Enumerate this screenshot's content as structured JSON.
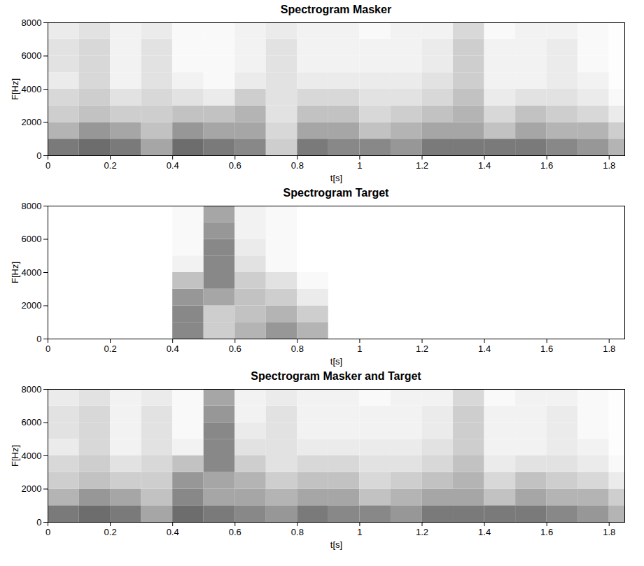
{
  "chart_data": [
    {
      "type": "heatmap",
      "title": "Spectrogram Masker",
      "x_label": "t[s]",
      "y_label": "F[Hz]",
      "xlim": [
        0,
        1.85
      ],
      "ylim": [
        0,
        8000
      ],
      "xticks": [
        0,
        0.2,
        0.4,
        0.6,
        0.8,
        1,
        1.2,
        1.4,
        1.6,
        1.8
      ],
      "yticks": [
        0,
        2000,
        4000,
        6000,
        8000
      ],
      "time_edges": [
        0,
        0.1,
        0.2,
        0.3,
        0.4,
        0.5,
        0.6,
        0.7,
        0.8,
        0.9,
        1,
        1.1,
        1.2,
        1.3,
        1.4,
        1.5,
        1.6,
        1.7,
        1.8,
        1.85
      ],
      "freq_edges": [
        0,
        1000,
        2000,
        3000,
        4000,
        5000,
        6000,
        7000,
        8000
      ],
      "cells": [
        [
          0.6,
          0.65,
          0.6,
          0.45,
          0.65,
          0.6,
          0.55,
          0.3,
          0.6,
          0.55,
          0.55,
          0.5,
          0.6,
          0.6,
          0.6,
          0.6,
          0.55,
          0.5,
          0.4
        ],
        [
          0.4,
          0.5,
          0.45,
          0.35,
          0.5,
          0.45,
          0.45,
          0.25,
          0.45,
          0.45,
          0.35,
          0.4,
          0.45,
          0.45,
          0.35,
          0.45,
          0.4,
          0.4,
          0.3
        ],
        [
          0.3,
          0.35,
          0.3,
          0.3,
          0.35,
          0.35,
          0.4,
          0.2,
          0.35,
          0.35,
          0.25,
          0.3,
          0.35,
          0.4,
          0.25,
          0.35,
          0.3,
          0.25,
          0.15
        ],
        [
          0.25,
          0.3,
          0.2,
          0.25,
          0.2,
          0.15,
          0.3,
          0.2,
          0.25,
          0.25,
          0.2,
          0.2,
          0.25,
          0.35,
          0.15,
          0.2,
          0.2,
          0.15,
          0.05
        ],
        [
          0.15,
          0.25,
          0.1,
          0.2,
          0.1,
          0.05,
          0.15,
          0.2,
          0.15,
          0.15,
          0.15,
          0.15,
          0.2,
          0.3,
          0.1,
          0.1,
          0.15,
          0.1,
          0.02
        ],
        [
          0.2,
          0.25,
          0.1,
          0.2,
          0.05,
          0.05,
          0.1,
          0.2,
          0.1,
          0.1,
          0.1,
          0.1,
          0.15,
          0.3,
          0.1,
          0.1,
          0.15,
          0.05,
          0.02
        ],
        [
          0.2,
          0.25,
          0.1,
          0.2,
          0.05,
          0.05,
          0.1,
          0.2,
          0.1,
          0.1,
          0.1,
          0.1,
          0.15,
          0.3,
          0.1,
          0.1,
          0.15,
          0.05,
          0.02
        ],
        [
          0.15,
          0.2,
          0.1,
          0.15,
          0.05,
          0.05,
          0.1,
          0.15,
          0.1,
          0.1,
          0.05,
          0.1,
          0.1,
          0.25,
          0.05,
          0.1,
          0.1,
          0.05,
          0.02
        ]
      ]
    },
    {
      "type": "heatmap",
      "title": "Spectrogram Target",
      "x_label": "t[s]",
      "y_label": "F[Hz]",
      "xlim": [
        0,
        1.85
      ],
      "ylim": [
        0,
        8000
      ],
      "xticks": [
        0,
        0.2,
        0.4,
        0.6,
        0.8,
        1,
        1.2,
        1.4,
        1.6,
        1.8
      ],
      "yticks": [
        0,
        2000,
        4000,
        6000,
        8000
      ],
      "time_edges": [
        0,
        0.1,
        0.2,
        0.3,
        0.4,
        0.5,
        0.6,
        0.7,
        0.8,
        0.9,
        1,
        1.1,
        1.2,
        1.3,
        1.4,
        1.5,
        1.6,
        1.7,
        1.8,
        1.85
      ],
      "freq_edges": [
        0,
        1000,
        2000,
        3000,
        4000,
        5000,
        6000,
        7000,
        8000
      ],
      "cells": [
        [
          0,
          0,
          0,
          0,
          0.55,
          0.3,
          0.4,
          0.5,
          0.4,
          0,
          0,
          0,
          0,
          0,
          0,
          0,
          0,
          0,
          0
        ],
        [
          0,
          0,
          0,
          0,
          0.55,
          0.3,
          0.35,
          0.4,
          0.3,
          0,
          0,
          0,
          0,
          0,
          0,
          0,
          0,
          0,
          0
        ],
        [
          0,
          0,
          0,
          0,
          0.5,
          0.45,
          0.35,
          0.3,
          0.15,
          0,
          0,
          0,
          0,
          0,
          0,
          0,
          0,
          0,
          0
        ],
        [
          0,
          0,
          0,
          0,
          0.35,
          0.55,
          0.3,
          0.2,
          0.05,
          0,
          0,
          0,
          0,
          0,
          0,
          0,
          0,
          0,
          0
        ],
        [
          0,
          0,
          0,
          0,
          0.1,
          0.55,
          0.2,
          0.05,
          0,
          0,
          0,
          0,
          0,
          0,
          0,
          0,
          0,
          0,
          0
        ],
        [
          0,
          0,
          0,
          0,
          0.05,
          0.55,
          0.15,
          0.05,
          0,
          0,
          0,
          0,
          0,
          0,
          0,
          0,
          0,
          0,
          0
        ],
        [
          0,
          0,
          0,
          0,
          0.05,
          0.5,
          0.1,
          0.05,
          0,
          0,
          0,
          0,
          0,
          0,
          0,
          0,
          0,
          0,
          0
        ],
        [
          0,
          0,
          0,
          0,
          0.05,
          0.45,
          0.1,
          0.05,
          0,
          0,
          0,
          0,
          0,
          0,
          0,
          0,
          0,
          0,
          0
        ]
      ]
    },
    {
      "type": "heatmap",
      "title": "Spectrogram Masker and Target",
      "x_label": "t[s]",
      "y_label": "F[Hz]",
      "xlim": [
        0,
        1.85
      ],
      "ylim": [
        0,
        8000
      ],
      "xticks": [
        0,
        0.2,
        0.4,
        0.6,
        0.8,
        1,
        1.2,
        1.4,
        1.6,
        1.8
      ],
      "yticks": [
        0,
        2000,
        4000,
        6000,
        8000
      ],
      "time_edges": [
        0,
        0.1,
        0.2,
        0.3,
        0.4,
        0.5,
        0.6,
        0.7,
        0.8,
        0.9,
        1,
        1.1,
        1.2,
        1.3,
        1.4,
        1.5,
        1.6,
        1.7,
        1.8,
        1.85
      ],
      "freq_edges": [
        0,
        1000,
        2000,
        3000,
        4000,
        5000,
        6000,
        7000,
        8000
      ],
      "cells": [
        [
          0.6,
          0.65,
          0.6,
          0.45,
          0.65,
          0.6,
          0.55,
          0.5,
          0.6,
          0.55,
          0.55,
          0.5,
          0.6,
          0.6,
          0.6,
          0.6,
          0.55,
          0.5,
          0.4
        ],
        [
          0.4,
          0.5,
          0.45,
          0.35,
          0.55,
          0.45,
          0.45,
          0.4,
          0.45,
          0.45,
          0.35,
          0.4,
          0.45,
          0.45,
          0.35,
          0.45,
          0.4,
          0.4,
          0.3
        ],
        [
          0.3,
          0.35,
          0.3,
          0.3,
          0.5,
          0.45,
          0.4,
          0.3,
          0.35,
          0.35,
          0.25,
          0.3,
          0.35,
          0.4,
          0.25,
          0.35,
          0.3,
          0.25,
          0.15
        ],
        [
          0.25,
          0.3,
          0.2,
          0.25,
          0.35,
          0.55,
          0.3,
          0.2,
          0.25,
          0.25,
          0.2,
          0.2,
          0.25,
          0.35,
          0.15,
          0.2,
          0.2,
          0.15,
          0.05
        ],
        [
          0.15,
          0.25,
          0.1,
          0.2,
          0.1,
          0.55,
          0.2,
          0.2,
          0.15,
          0.15,
          0.15,
          0.15,
          0.2,
          0.3,
          0.1,
          0.1,
          0.15,
          0.1,
          0.02
        ],
        [
          0.2,
          0.25,
          0.1,
          0.2,
          0.05,
          0.55,
          0.15,
          0.2,
          0.1,
          0.1,
          0.1,
          0.1,
          0.15,
          0.3,
          0.1,
          0.1,
          0.15,
          0.05,
          0.02
        ],
        [
          0.2,
          0.25,
          0.1,
          0.2,
          0.05,
          0.5,
          0.1,
          0.2,
          0.1,
          0.1,
          0.1,
          0.1,
          0.15,
          0.3,
          0.1,
          0.1,
          0.15,
          0.05,
          0.02
        ],
        [
          0.15,
          0.2,
          0.1,
          0.15,
          0.05,
          0.45,
          0.1,
          0.15,
          0.1,
          0.1,
          0.05,
          0.1,
          0.1,
          0.25,
          0.05,
          0.1,
          0.1,
          0.05,
          0.02
        ]
      ]
    }
  ]
}
